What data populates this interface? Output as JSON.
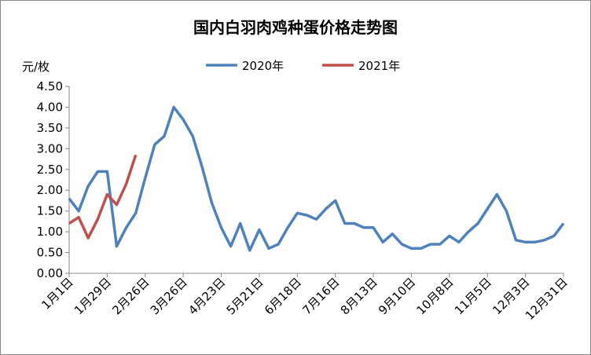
{
  "chart_data": {
    "type": "line",
    "title": "国内白羽肉鸡种蛋价格走势图",
    "y_label": "元/枚",
    "categories": [
      "1月1日",
      null,
      null,
      null,
      "1月29日",
      null,
      null,
      null,
      "2月26日",
      null,
      null,
      null,
      "3月26日",
      null,
      null,
      null,
      "4月23日",
      null,
      null,
      null,
      "5月21日",
      null,
      null,
      null,
      "6月18日",
      null,
      null,
      null,
      "7月16日",
      null,
      null,
      null,
      "8月13日",
      null,
      null,
      null,
      "9月10日",
      null,
      null,
      null,
      "10月8日",
      null,
      null,
      null,
      "11月5日",
      null,
      null,
      null,
      "12月3日",
      null,
      null,
      null,
      "12月31日"
    ],
    "series": [
      {
        "name": "2020年",
        "color": "#4f81bd",
        "values": [
          1.8,
          1.5,
          2.1,
          2.45,
          2.45,
          0.65,
          1.1,
          1.45,
          2.3,
          3.1,
          3.3,
          4.0,
          3.7,
          3.3,
          2.55,
          1.7,
          1.1,
          0.65,
          1.2,
          0.55,
          1.05,
          0.6,
          0.7,
          1.1,
          1.45,
          1.4,
          1.3,
          1.55,
          1.75,
          1.2,
          1.2,
          1.1,
          1.1,
          0.75,
          0.95,
          0.7,
          0.6,
          0.6,
          0.7,
          0.7,
          0.9,
          0.75,
          1.0,
          1.2,
          1.55,
          1.9,
          1.5,
          0.8,
          0.75,
          0.75,
          0.8,
          0.9,
          1.2
        ]
      },
      {
        "name": "2021年",
        "color": "#c0504d",
        "values": [
          1.2,
          1.35,
          0.85,
          1.3,
          1.9,
          1.65,
          2.15,
          2.85,
          null,
          null,
          null,
          null,
          null,
          null,
          null,
          null,
          null,
          null,
          null,
          null,
          null,
          null,
          null,
          null,
          null,
          null,
          null,
          null,
          null,
          null,
          null,
          null,
          null,
          null,
          null,
          null,
          null,
          null,
          null,
          null,
          null,
          null,
          null,
          null,
          null,
          null,
          null,
          null,
          null,
          null,
          null,
          null,
          null
        ]
      }
    ],
    "ylim": [
      0,
      4.5
    ],
    "yticks": [
      {
        "value": 0,
        "label": "0.00"
      },
      {
        "value": 0.5,
        "label": "0.50"
      },
      {
        "value": 1,
        "label": "1.00"
      },
      {
        "value": 1.5,
        "label": "1.50"
      },
      {
        "value": 2,
        "label": "2.00"
      },
      {
        "value": 2.5,
        "label": "2.50"
      },
      {
        "value": 3,
        "label": "3.00"
      },
      {
        "value": 3.5,
        "label": "3.50"
      },
      {
        "value": 4,
        "label": "4.00"
      },
      {
        "value": 4.5,
        "label": "4.50"
      }
    ],
    "grid": false,
    "legend": "top"
  }
}
